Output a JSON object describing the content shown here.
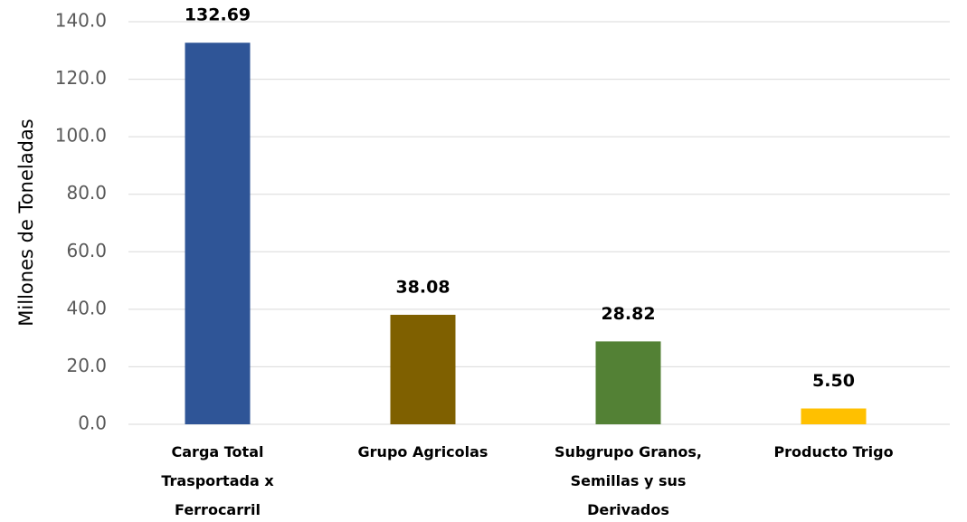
{
  "chart_data": {
    "type": "bar",
    "y_label": "Millones de Toneladas",
    "categories": [
      "Carga Total Trasportada x Ferrocarril",
      "Grupo Agricolas",
      "Subgrupo Granos, Semillas y sus Derivados",
      "Producto Trigo"
    ],
    "values": [
      132.69,
      38.08,
      28.82,
      5.5
    ],
    "value_labels": [
      "132.69",
      "38.08",
      "28.82",
      "5.50"
    ],
    "colors": [
      "#2f5597",
      "#7f6000",
      "#538135",
      "#ffc000"
    ],
    "ylim": [
      0,
      140
    ],
    "yticks": [
      {
        "value": 0,
        "label": "0.0"
      },
      {
        "value": 20,
        "label": "20.0"
      },
      {
        "value": 40,
        "label": "40.0"
      },
      {
        "value": 60,
        "label": "60.0"
      },
      {
        "value": 80,
        "label": "80.0"
      },
      {
        "value": 100,
        "label": "100.0"
      },
      {
        "value": 120,
        "label": "120.0"
      },
      {
        "value": 140,
        "label": "140.0"
      }
    ],
    "grid": true
  }
}
